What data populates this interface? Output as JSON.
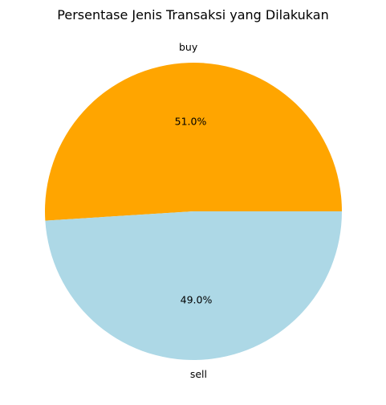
{
  "chart_data": {
    "type": "pie",
    "title": "Persentase Jenis Transaksi yang Dilakukan",
    "labels": [
      "buy",
      "sell"
    ],
    "values": [
      51.0,
      49.0
    ],
    "percent_labels": [
      "51.0%",
      "49.0%"
    ],
    "colors": [
      "#ffa500",
      "#add8e6"
    ],
    "start_angle_deg": 0,
    "direction": "counterclockwise",
    "legend": "none"
  }
}
